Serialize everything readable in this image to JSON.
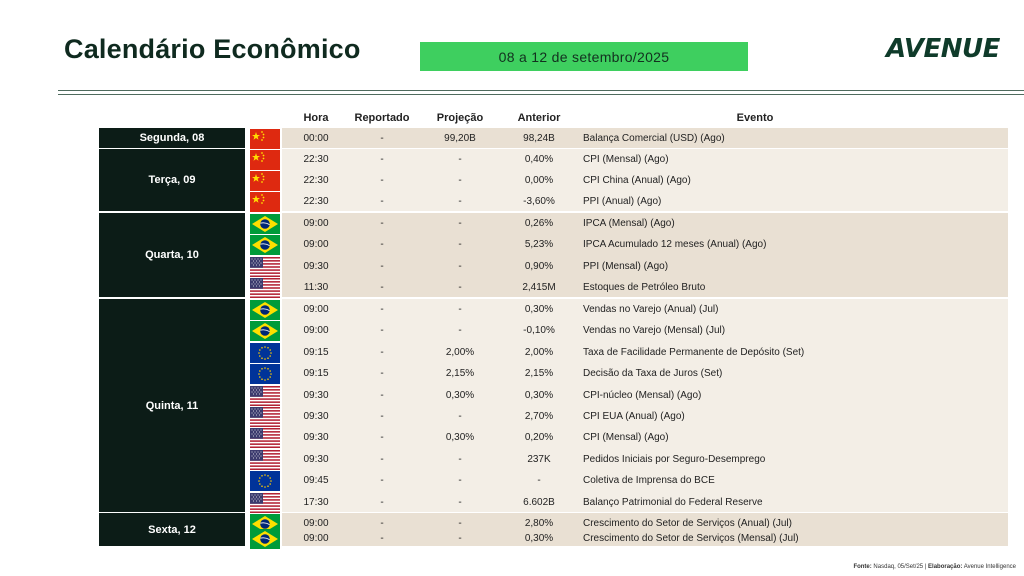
{
  "header": {
    "title": "Calendário Econômico",
    "date_range": "08 a 12 de setembro/2025",
    "logo": "AVENUE"
  },
  "table": {
    "columns": {
      "hora": "Hora",
      "reportado": "Reportado",
      "projecao": "Projeção",
      "anterior": "Anterior",
      "evento": "Evento"
    },
    "days": [
      {
        "label": "Segunda, 08",
        "rows": [
          0,
          1
        ]
      },
      {
        "label": "Terça, 09",
        "rows": [
          1,
          4
        ]
      },
      {
        "label": "Quarta, 10",
        "rows": [
          4,
          8
        ]
      },
      {
        "label": "Quinta, 11",
        "rows": [
          8,
          18
        ]
      },
      {
        "label": "Sexta, 12",
        "rows": [
          18,
          20
        ]
      }
    ],
    "rows": [
      {
        "flag": "china-flag-icon",
        "hora": "00:00",
        "reportado": "-",
        "projecao": "99,20B",
        "anterior": "98,24B",
        "evento": "Balança Comercial (USD) (Ago)"
      },
      {
        "flag": "china-flag-icon",
        "hora": "22:30",
        "reportado": "-",
        "projecao": "-",
        "anterior": "0,40%",
        "evento": "CPI (Mensal) (Ago)"
      },
      {
        "flag": "china-flag-icon",
        "hora": "22:30",
        "reportado": "-",
        "projecao": "-",
        "anterior": "0,00%",
        "evento": "CPI China (Anual) (Ago)"
      },
      {
        "flag": "china-flag-icon",
        "hora": "22:30",
        "reportado": "-",
        "projecao": "-",
        "anterior": "-3,60%",
        "evento": "PPI (Anual) (Ago)"
      },
      {
        "flag": "brazil-flag-icon",
        "hora": "09:00",
        "reportado": "-",
        "projecao": "-",
        "anterior": "0,26%",
        "evento": "IPCA (Mensal) (Ago)"
      },
      {
        "flag": "brazil-flag-icon",
        "hora": "09:00",
        "reportado": "-",
        "projecao": "-",
        "anterior": "5,23%",
        "evento": "IPCA Acumulado 12 meses (Anual) (Ago)"
      },
      {
        "flag": "usa-flag-icon",
        "hora": "09:30",
        "reportado": "-",
        "projecao": "-",
        "anterior": "0,90%",
        "evento": "PPI (Mensal) (Ago)"
      },
      {
        "flag": "usa-flag-icon",
        "hora": "11:30",
        "reportado": "-",
        "projecao": "-",
        "anterior": "2,415M",
        "evento": "Estoques de Petróleo Bruto"
      },
      {
        "flag": "brazil-flag-icon",
        "hora": "09:00",
        "reportado": "-",
        "projecao": "-",
        "anterior": "0,30%",
        "evento": "Vendas no Varejo (Anual) (Jul)"
      },
      {
        "flag": "brazil-flag-icon",
        "hora": "09:00",
        "reportado": "-",
        "projecao": "-",
        "anterior": "-0,10%",
        "evento": "Vendas no Varejo (Mensal) (Jul)"
      },
      {
        "flag": "eu-flag-icon",
        "hora": "09:15",
        "reportado": "-",
        "projecao": "2,00%",
        "anterior": "2,00%",
        "evento": "Taxa de Facilidade Permanente de Depósito (Set)"
      },
      {
        "flag": "eu-flag-icon",
        "hora": "09:15",
        "reportado": "-",
        "projecao": "2,15%",
        "anterior": "2,15%",
        "evento": "Decisão da Taxa de Juros (Set)"
      },
      {
        "flag": "usa-flag-icon",
        "hora": "09:30",
        "reportado": "-",
        "projecao": "0,30%",
        "anterior": "0,30%",
        "evento": "CPI-núcleo (Mensal) (Ago)"
      },
      {
        "flag": "usa-flag-icon",
        "hora": "09:30",
        "reportado": "-",
        "projecao": "-",
        "anterior": "2,70%",
        "evento": "CPI EUA (Anual) (Ago)"
      },
      {
        "flag": "usa-flag-icon",
        "hora": "09:30",
        "reportado": "-",
        "projecao": "0,30%",
        "anterior": "0,20%",
        "evento": "CPI (Mensal) (Ago)"
      },
      {
        "flag": "usa-flag-icon",
        "hora": "09:30",
        "reportado": "-",
        "projecao": "-",
        "anterior": "237K",
        "evento": "Pedidos Iniciais por Seguro-Desemprego"
      },
      {
        "flag": "eu-flag-icon",
        "hora": "09:45",
        "reportado": "-",
        "projecao": "-",
        "anterior": "-",
        "evento": "Coletiva de Imprensa do BCE"
      },
      {
        "flag": "usa-flag-icon",
        "hora": "17:30",
        "reportado": "-",
        "projecao": "-",
        "anterior": "6.602B",
        "evento": "Balanço Patrimonial do Federal Reserve"
      },
      {
        "flag": "brazil-flag-icon",
        "hora": "09:00",
        "reportado": "-",
        "projecao": "-",
        "anterior": "2,80%",
        "evento": "Crescimento do Setor de Serviços (Anual) (Jul)"
      },
      {
        "flag": "brazil-flag-icon",
        "hora": "09:00",
        "reportado": "-",
        "projecao": "-",
        "anterior": "0,30%",
        "evento": "Crescimento do Setor de Serviços (Mensal) (Jul)"
      }
    ]
  },
  "footer": {
    "source_label": "Fonte:",
    "source_text": " Nasdaq, 05/Set/25 | ",
    "made_by_label": "Elaboração:",
    "made_by_text": " Avenue Intelligence"
  },
  "colors": {
    "accent_green": "#3ecf5f",
    "day_band": "#0c1c17",
    "row_band_a": "#e9e0d3",
    "row_band_b": "#f3eee6"
  }
}
